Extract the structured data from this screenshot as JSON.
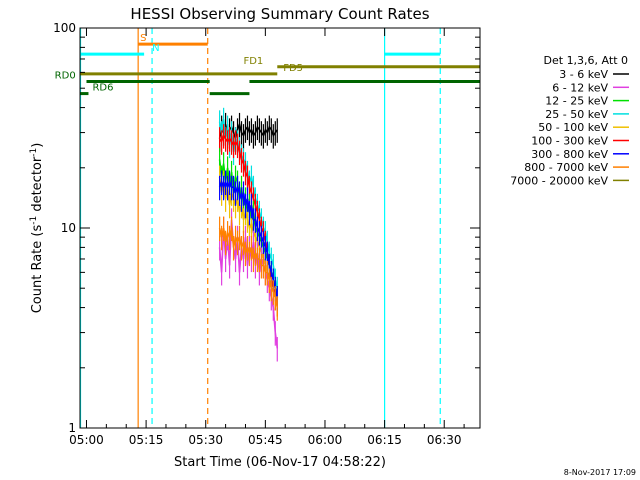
{
  "chart_data": {
    "type": "line",
    "title": "HESSI Observing Summary Count Rates",
    "xlabel": "Start Time (06-Nov-17 04:58:22)",
    "ylabel_main": "Count Rate (s",
    "ylabel_sup1": "-1",
    "ylabel_mid": " detector",
    "ylabel_sup2": "-1",
    "ylabel_end": ")",
    "y_scale": "log",
    "ylim": [
      1,
      100
    ],
    "xlim_min": [
      298.37,
      399.0
    ],
    "x_ticks": [
      {
        "min": 300,
        "label": "05:00"
      },
      {
        "min": 315,
        "label": "05:15"
      },
      {
        "min": 330,
        "label": "05:30"
      },
      {
        "min": 345,
        "label": "05:45"
      },
      {
        "min": 360,
        "label": "06:00"
      },
      {
        "min": 375,
        "label": "06:15"
      },
      {
        "min": 390,
        "label": "06:30"
      }
    ],
    "y_ticks": [
      {
        "value": 1,
        "label": "1"
      },
      {
        "value": 10,
        "label": "10"
      },
      {
        "value": 100,
        "label": "100"
      }
    ],
    "legend": {
      "header": "Det 1,3,6, Att 0",
      "position": "right",
      "items": [
        {
          "label": "3 - 6 keV",
          "color": "#000000"
        },
        {
          "label": "6 - 12 keV",
          "color": "#e040e0"
        },
        {
          "label": "12 - 25 keV",
          "color": "#00e000"
        },
        {
          "label": "25 - 50 keV",
          "color": "#00e0e0"
        },
        {
          "label": "50 - 100 keV",
          "color": "#f0c000"
        },
        {
          "label": "100 - 300 keV",
          "color": "#ff0000"
        },
        {
          "label": "300 - 800 keV",
          "color": "#0000ff"
        },
        {
          "label": "800 - 7000 keV",
          "color": "#ff8000"
        },
        {
          "label": "7000 - 20000 keV",
          "color": "#808000"
        }
      ]
    },
    "series": [
      {
        "name": "3 - 6 keV",
        "color": "#000000",
        "x_start": 333.5,
        "x_end": 348.0,
        "values": [
          28,
          32,
          30,
          33,
          29,
          31,
          32,
          30,
          28,
          31,
          33,
          30,
          29,
          31,
          32,
          30,
          31,
          29,
          30,
          32,
          31,
          30,
          29,
          31,
          30,
          32,
          31,
          29,
          30,
          31
        ]
      },
      {
        "name": "25 - 50 keV",
        "color": "#00e0e0",
        "x_start": 333.5,
        "x_end": 348.0,
        "values": [
          34,
          30,
          35,
          28,
          32,
          26,
          30,
          24,
          28,
          27,
          25,
          23,
          22,
          21,
          19,
          17,
          18,
          16,
          14,
          13,
          12,
          11,
          10,
          9.5,
          8.5,
          7.5,
          7,
          6.5,
          5.5,
          5
        ]
      },
      {
        "name": "100 - 300 keV",
        "color": "#ff0000",
        "x_start": 333.5,
        "x_end": 348.0,
        "values": [
          28,
          27,
          29,
          28,
          27,
          28,
          27,
          26,
          27,
          26,
          24,
          22,
          21,
          19,
          18,
          16,
          15,
          14,
          13,
          12,
          11,
          10,
          9.5,
          8.5,
          7.5,
          6.5,
          5.5,
          5,
          4.5,
          4.2
        ]
      },
      {
        "name": "12 - 25 keV",
        "color": "#00e000",
        "x_start": 333.5,
        "x_end": 348.0,
        "values": [
          22,
          18,
          21,
          17,
          20,
          16,
          19,
          15,
          18,
          17,
          14,
          16,
          13,
          14,
          12,
          13,
          11,
          12,
          10,
          9.5,
          9,
          8.5,
          8,
          7.5,
          7,
          6.5,
          6,
          5.5,
          5,
          4.5
        ]
      },
      {
        "name": "50 - 100 keV",
        "color": "#f0c000",
        "x_start": 333.5,
        "x_end": 348.0,
        "values": [
          18,
          15,
          17,
          14,
          16,
          13,
          15,
          14,
          13,
          14,
          12,
          13,
          11,
          12,
          11,
          10,
          10.5,
          9.5,
          9,
          8.5,
          8,
          7.5,
          7,
          6.5,
          6,
          5.5,
          5,
          4.8,
          4.5,
          4.2
        ]
      },
      {
        "name": "300 - 800 keV",
        "color": "#0000ff",
        "x_start": 333.5,
        "x_end": 348.0,
        "values": [
          16,
          17,
          16,
          17,
          16,
          17,
          16,
          16,
          15,
          16,
          15,
          14,
          15,
          13,
          14,
          12,
          13,
          11,
          11,
          10,
          9.5,
          9,
          8.5,
          8,
          7.5,
          6.5,
          6,
          5.5,
          5,
          4.5
        ]
      },
      {
        "name": "6 - 12 keV",
        "color": "#e040e0",
        "x_start": 333.5,
        "x_end": 348.0,
        "values": [
          8,
          6,
          10,
          7,
          9,
          6.5,
          11,
          8,
          7,
          9,
          6,
          8,
          7,
          9,
          6.5,
          8,
          7,
          8.5,
          6.5,
          7.5,
          6,
          7,
          6.5,
          6,
          5.5,
          5,
          4.5,
          4,
          3,
          2.5
        ]
      },
      {
        "name": "800 - 7000 keV",
        "color": "#ff8000",
        "x_start": 333.5,
        "x_end": 348.0,
        "values": [
          10,
          9,
          10,
          8.5,
          9.5,
          9,
          10,
          8,
          9,
          8.5,
          9,
          8,
          8.5,
          7.5,
          8,
          7.5,
          8,
          7,
          7.5,
          7,
          7,
          6.5,
          6.5,
          6,
          6,
          5.5,
          5,
          4.8,
          4.5,
          4
        ]
      }
    ],
    "state_bars": [
      {
        "label": "S",
        "color": "#ff8000",
        "x_start": 313.0,
        "x_end": 330.5,
        "y": 83,
        "label_x_min": 313.5
      },
      {
        "label": "N",
        "color": "#00ffff",
        "x_start": 298.5,
        "x_end": 314.5,
        "y": 74,
        "label_x_min": 316.5
      },
      {
        "label": "N",
        "color": "#00ffff",
        "x_start": 375.0,
        "x_end": 389.0,
        "y": 74,
        "label_x_min": 0
      },
      {
        "label": "FD1",
        "color": "#808000",
        "x_start": 348.0,
        "x_end": 399.0,
        "y": 64,
        "label_x_min": 339.5
      },
      {
        "label": "FD5",
        "color": "#808000",
        "x_start": 298.5,
        "x_end": 348.0,
        "y": 59,
        "label_x_min": 349.5
      },
      {
        "label": "RD0",
        "color": "#006400",
        "x_start": 300.0,
        "x_end": 331.0,
        "y": 54,
        "label_x_min": 292.0
      },
      {
        "label": "RD0",
        "color": "#006400",
        "x_start": 341.0,
        "x_end": 399.0,
        "y": 54,
        "label_x_min": 0
      },
      {
        "label": "RD6",
        "color": "#006400",
        "x_start": 298.5,
        "x_end": 300.5,
        "y": 47,
        "label_x_min": 301.5
      },
      {
        "label": "RD6",
        "color": "#006400",
        "x_start": 331.0,
        "x_end": 341.0,
        "y": 47,
        "label_x_min": 0
      }
    ],
    "vertical_lines": [
      {
        "x_min": 298.5,
        "color": "#00ffff",
        "style": "solid"
      },
      {
        "x_min": 313.0,
        "color": "#ff8000",
        "style": "solid"
      },
      {
        "x_min": 316.5,
        "color": "#00ffff",
        "style": "dashed"
      },
      {
        "x_min": 330.5,
        "color": "#ff8000",
        "style": "dashed"
      },
      {
        "x_min": 375.0,
        "color": "#00ffff",
        "style": "solid"
      },
      {
        "x_min": 389.0,
        "color": "#00ffff",
        "style": "dashed"
      }
    ]
  },
  "footer_date": "8-Nov-2017 17:09"
}
